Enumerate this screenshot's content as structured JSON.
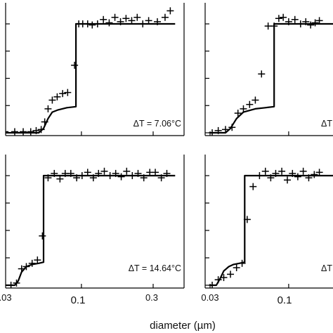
{
  "chart_data": {
    "xlabel": "diameter (µm)",
    "x_tick_labels": [
      "0.03",
      "0.1",
      "0.3"
    ],
    "panels": [
      {
        "type": "scatter",
        "annotation": "ΔT = 7.06°C",
        "xscale": "log",
        "xlim": [
          0.03,
          0.42
        ],
        "ylim": [
          0,
          1.05
        ],
        "x_ticks": [
          0.03,
          0.1,
          0.3
        ],
        "y_ticks": [
          0,
          0.25,
          0.5,
          0.75,
          1.0
        ],
        "model_curve": {
          "x": [
            0.03,
            0.052,
            0.056,
            0.06,
            0.064,
            0.07,
            0.08,
            0.092,
            0.092,
            0.42
          ],
          "y": [
            0,
            0,
            0.04,
            0.13,
            0.19,
            0.21,
            0.23,
            0.24,
            1.0,
            1.0
          ]
        },
        "points": {
          "x": [
            0.031,
            0.036,
            0.041,
            0.046,
            0.05,
            0.054,
            0.057,
            0.06,
            0.064,
            0.069,
            0.075,
            0.081,
            0.09,
            0.096,
            0.102,
            0.11,
            0.118,
            0.128,
            0.14,
            0.153,
            0.167,
            0.182,
            0.198,
            0.216,
            0.235,
            0.256,
            0.28,
            0.32,
            0.36,
            0.39
          ],
          "y": [
            0.01,
            0.01,
            0.01,
            0.01,
            0.02,
            0.03,
            0.1,
            0.22,
            0.3,
            0.33,
            0.36,
            0.37,
            0.62,
            1.0,
            1.0,
            1.0,
            0.99,
            1.0,
            1.04,
            1.01,
            1.06,
            1.02,
            1.05,
            1.03,
            1.06,
            1.0,
            1.03,
            1.02,
            1.06,
            1.12
          ]
        }
      },
      {
        "type": "scatter",
        "annotation": "ΔT",
        "xscale": "log",
        "xlim": [
          0.03,
          0.42
        ],
        "ylim": [
          0,
          1.05
        ],
        "x_ticks": [
          0.03,
          0.1,
          0.3
        ],
        "y_ticks": [
          0,
          0.25,
          0.5,
          0.75,
          1.0
        ],
        "model_curve": {
          "x": [
            0.03,
            0.038,
            0.041,
            0.045,
            0.05,
            0.06,
            0.07,
            0.08,
            0.08,
            0.42
          ],
          "y": [
            0,
            0,
            0.04,
            0.13,
            0.19,
            0.22,
            0.23,
            0.24,
            1.0,
            1.0
          ]
        },
        "points": {
          "x": [
            0.031,
            0.034,
            0.038,
            0.042,
            0.046,
            0.05,
            0.055,
            0.06,
            0.066,
            0.073,
            0.08,
            0.086,
            0.092,
            0.1,
            0.11,
            0.12,
            0.13,
            0.14,
            0.15,
            0.16
          ],
          "y": [
            0.0,
            0.02,
            0.03,
            0.05,
            0.18,
            0.22,
            0.26,
            0.3,
            0.54,
            0.98,
            0.98,
            1.05,
            1.06,
            1.02,
            1.04,
            1.0,
            1.02,
            0.99,
            1.01,
            1.03
          ]
        }
      },
      {
        "type": "scatter",
        "annotation": "ΔT = 14.64°C",
        "xscale": "log",
        "xlim": [
          0.03,
          0.42
        ],
        "ylim": [
          0,
          1.05
        ],
        "x_ticks": [
          0.03,
          0.1,
          0.3
        ],
        "y_ticks": [
          0,
          0.25,
          0.5,
          0.75,
          1.0
        ],
        "model_curve": {
          "x": [
            0.03,
            0.036,
            0.038,
            0.04,
            0.043,
            0.047,
            0.052,
            0.056,
            0.056,
            0.42
          ],
          "y": [
            0,
            0,
            0.04,
            0.12,
            0.17,
            0.19,
            0.2,
            0.21,
            1.0,
            1.0
          ]
        },
        "points": {
          "x": [
            0.031,
            0.034,
            0.037,
            0.04,
            0.043,
            0.047,
            0.051,
            0.055,
            0.06,
            0.066,
            0.072,
            0.078,
            0.085,
            0.093,
            0.101,
            0.11,
            0.12,
            0.13,
            0.142,
            0.155,
            0.169,
            0.184,
            0.2,
            0.218,
            0.238,
            0.26,
            0.285,
            0.31,
            0.34,
            0.37
          ],
          "y": [
            0.0,
            0.0,
            0.02,
            0.15,
            0.17,
            0.2,
            0.23,
            0.45,
            0.98,
            1.02,
            0.97,
            1.02,
            1.02,
            0.98,
            1.0,
            1.03,
            0.98,
            1.02,
            1.04,
            1.0,
            1.02,
            0.99,
            1.04,
            1.0,
            1.02,
            0.98,
            1.03,
            1.03,
            0.98,
            1.02
          ]
        }
      },
      {
        "type": "scatter",
        "annotation": "ΔT",
        "xscale": "log",
        "xlim": [
          0.03,
          0.42
        ],
        "ylim": [
          0,
          1.05
        ],
        "x_ticks": [
          0.03,
          0.1,
          0.3
        ],
        "y_ticks": [
          0,
          0.25,
          0.5,
          0.75,
          1.0
        ],
        "model_curve": {
          "x": [
            0.03,
            0.033,
            0.035,
            0.037,
            0.04,
            0.043,
            0.047,
            0.051,
            0.051,
            0.42
          ],
          "y": [
            0,
            0,
            0.06,
            0.13,
            0.17,
            0.19,
            0.2,
            0.21,
            1.0,
            1.0
          ]
        },
        "points": {
          "x": [
            0.031,
            0.034,
            0.037,
            0.041,
            0.045,
            0.049,
            0.053,
            0.058,
            0.064,
            0.07,
            0.076,
            0.082,
            0.09,
            0.098,
            0.106,
            0.115,
            0.125,
            0.136,
            0.148,
            0.16
          ],
          "y": [
            0.0,
            0.05,
            0.07,
            0.1,
            0.16,
            0.2,
            0.6,
            0.9,
            1.0,
            1.04,
            0.98,
            1.02,
            1.04,
            0.96,
            1.02,
            0.99,
            1.04,
            0.98,
            1.01,
            1.03
          ]
        }
      }
    ]
  }
}
